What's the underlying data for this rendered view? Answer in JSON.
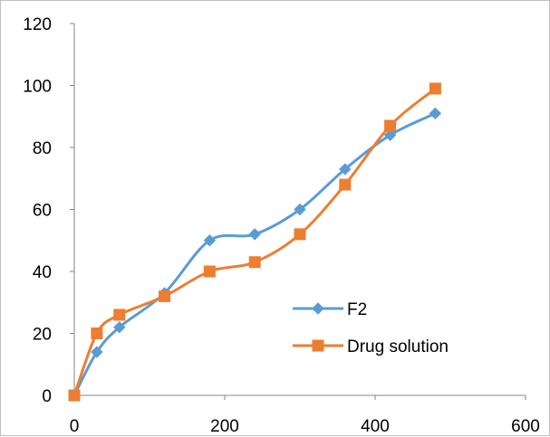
{
  "chart_data": {
    "type": "line",
    "title": "",
    "xlabel": "",
    "ylabel": "",
    "xlim": [
      0,
      600
    ],
    "ylim": [
      0,
      120
    ],
    "x_ticks": [
      0,
      200,
      400,
      600
    ],
    "y_ticks": [
      0,
      20,
      40,
      60,
      80,
      100,
      120
    ],
    "grid": false,
    "smooth": true,
    "legend": {
      "placement": "bottom-right-inside"
    },
    "series": [
      {
        "name": "F2",
        "color": "#5B9BD5",
        "marker": "diamond",
        "x": [
          0,
          30,
          60,
          120,
          180,
          240,
          300,
          360,
          420,
          480
        ],
        "y": [
          0,
          14,
          22,
          33,
          50,
          52,
          60,
          73,
          84,
          91
        ]
      },
      {
        "name": "Drug solution",
        "color": "#ED7D31",
        "marker": "square",
        "x": [
          0,
          30,
          60,
          120,
          180,
          240,
          300,
          360,
          420,
          480
        ],
        "y": [
          0,
          20,
          26,
          32,
          40,
          43,
          52,
          68,
          87,
          99
        ]
      }
    ]
  }
}
